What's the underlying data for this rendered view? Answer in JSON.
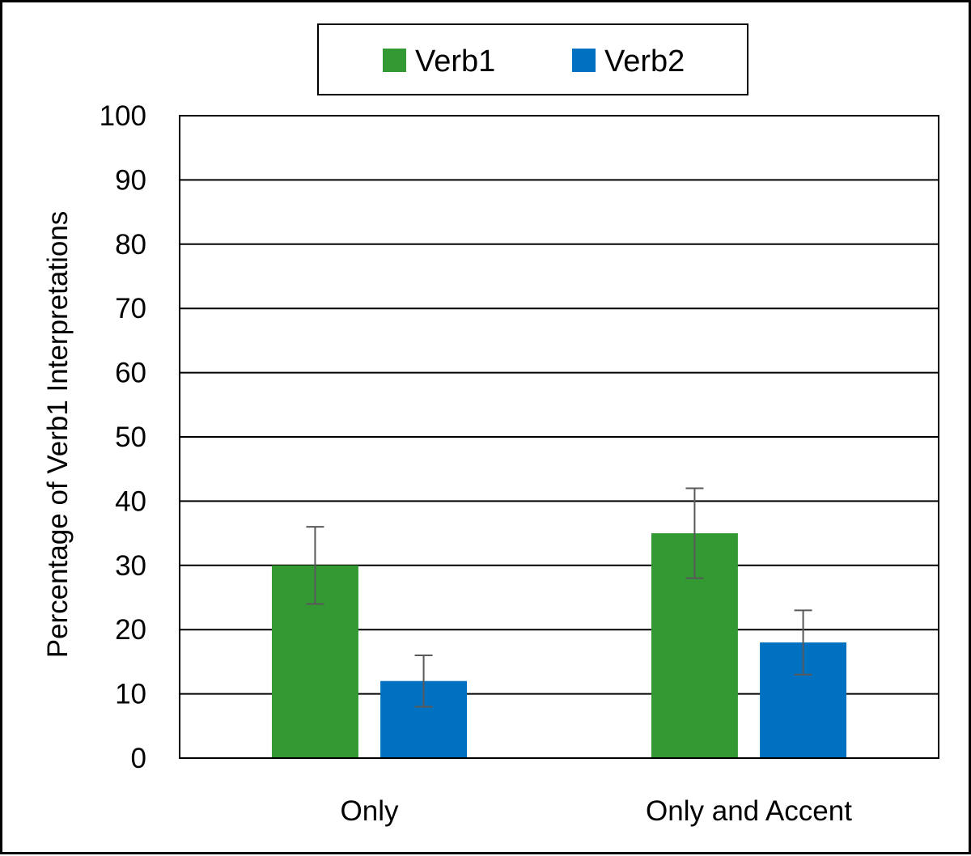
{
  "chart_data": {
    "type": "bar",
    "categories": [
      "Only",
      "Only and Accent"
    ],
    "series": [
      {
        "name": "Verb1",
        "color": "#339933",
        "values": [
          30,
          35
        ],
        "error_low": [
          24,
          28
        ],
        "error_high": [
          36,
          42
        ]
      },
      {
        "name": "Verb2",
        "color": "#0070C0",
        "values": [
          12,
          18
        ],
        "error_low": [
          8,
          13
        ],
        "error_high": [
          16,
          23
        ]
      }
    ],
    "ylabel": "Percentage of Verb1 Interpretations",
    "ylim": [
      0,
      100
    ],
    "yticks": [
      0,
      10,
      20,
      30,
      40,
      50,
      60,
      70,
      80,
      90,
      100
    ],
    "grid": true,
    "legend": "top"
  }
}
